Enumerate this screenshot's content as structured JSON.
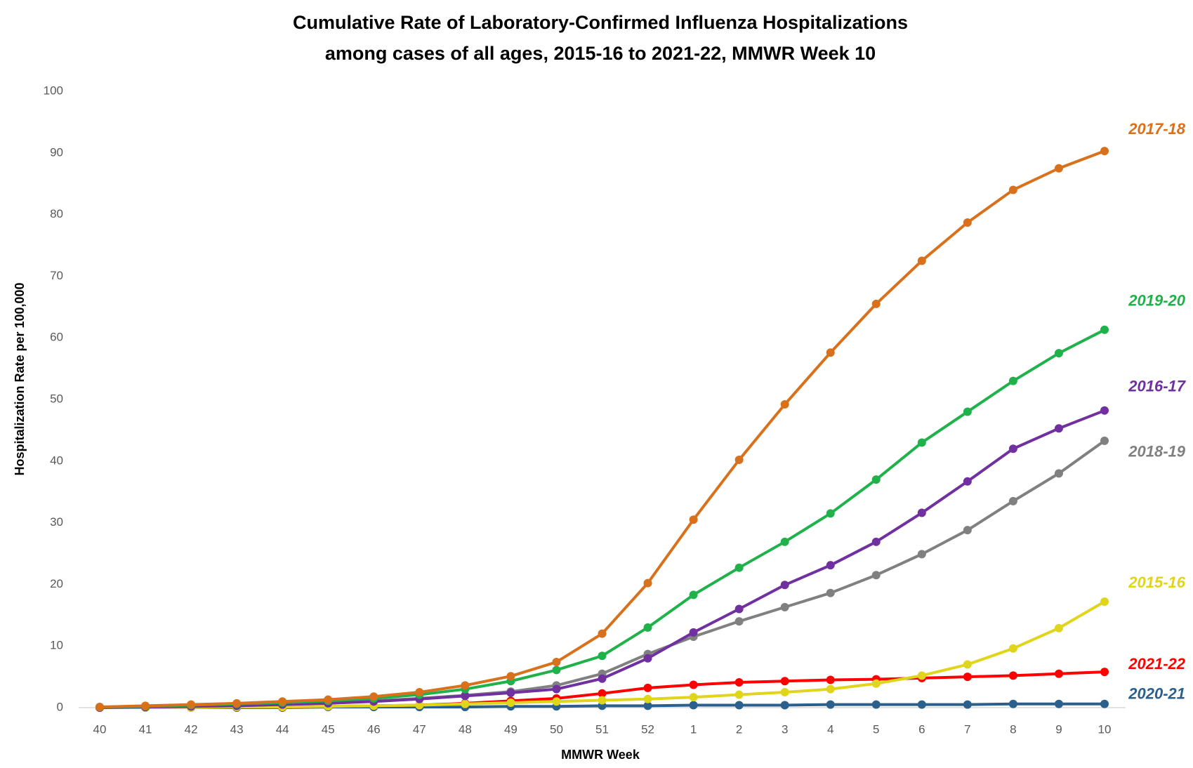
{
  "chart_data": {
    "type": "line",
    "title": "Cumulative Rate of Laboratory-Confirmed Influenza Hospitalizations",
    "subtitle": "among cases of all ages, 2015-16 to 2021-22, MMWR  Week 10",
    "x_label": "MMWR Week",
    "y_label": "Hospitalization  Rate per 100,000",
    "categories": [
      "40",
      "41",
      "42",
      "43",
      "44",
      "45",
      "46",
      "47",
      "48",
      "49",
      "50",
      "51",
      "52",
      "1",
      "2",
      "3",
      "4",
      "5",
      "6",
      "7",
      "8",
      "9",
      "10"
    ],
    "ylim": [
      0,
      100
    ],
    "yticks": [
      0,
      10,
      20,
      30,
      40,
      50,
      60,
      70,
      80,
      90,
      100
    ],
    "grid": false,
    "series": [
      {
        "name": "2017-18",
        "color": "#d9711c",
        "values": [
          0.1,
          0.3,
          0.5,
          0.7,
          1.0,
          1.3,
          1.8,
          2.5,
          3.6,
          5.1,
          7.4,
          12,
          20.2,
          30.5,
          40.2,
          49.2,
          57.6,
          65.5,
          72.5,
          78.7,
          84,
          87.5,
          90.3
        ]
      },
      {
        "name": "2019-20",
        "color": "#1fb24a",
        "values": [
          0.1,
          0.2,
          0.4,
          0.6,
          0.8,
          1.1,
          1.5,
          2.1,
          3.0,
          4.3,
          6.1,
          8.4,
          13,
          18.3,
          22.7,
          26.9,
          31.5,
          37,
          43,
          48,
          53,
          57.5,
          61.3
        ]
      },
      {
        "name": "2016-17",
        "color": "#7030a0",
        "values": [
          0,
          0.1,
          0.2,
          0.3,
          0.5,
          0.7,
          1.0,
          1.4,
          1.9,
          2.4,
          3.0,
          4.7,
          8.0,
          12.2,
          16,
          19.9,
          23.1,
          26.9,
          31.6,
          36.7,
          42,
          45.3,
          48.2
        ]
      },
      {
        "name": "2018-19",
        "color": "#808080",
        "values": [
          0.1,
          0.1,
          0.2,
          0.3,
          0.5,
          0.8,
          1.1,
          1.5,
          2.0,
          2.6,
          3.6,
          5.5,
          8.7,
          11.5,
          14,
          16.3,
          18.6,
          21.5,
          24.9,
          28.8,
          33.5,
          38,
          43.3
        ]
      },
      {
        "name": "2015-16",
        "color": "#e0d51a",
        "values": [
          0,
          0,
          0,
          0.1,
          0.1,
          0.2,
          0.3,
          0.4,
          0.6,
          0.8,
          1.0,
          1.2,
          1.4,
          1.7,
          2.1,
          2.5,
          3.0,
          3.9,
          5.2,
          7.0,
          9.6,
          12.9,
          17.2
        ]
      },
      {
        "name": "2021-22",
        "color": "#ff0000",
        "values": [
          0,
          0,
          0,
          0.1,
          0.1,
          0.2,
          0.3,
          0.4,
          0.7,
          1.1,
          1.5,
          2.3,
          3.2,
          3.7,
          4.1,
          4.3,
          4.5,
          4.6,
          4.8,
          5.0,
          5.2,
          5.5,
          5.8
        ]
      },
      {
        "name": "2020-21",
        "color": "#2b5f8c",
        "values": [
          0,
          0,
          0,
          0,
          0,
          0.1,
          0.1,
          0.1,
          0.1,
          0.2,
          0.2,
          0.3,
          0.3,
          0.4,
          0.4,
          0.4,
          0.5,
          0.5,
          0.5,
          0.5,
          0.6,
          0.6,
          0.6
        ]
      }
    ]
  }
}
